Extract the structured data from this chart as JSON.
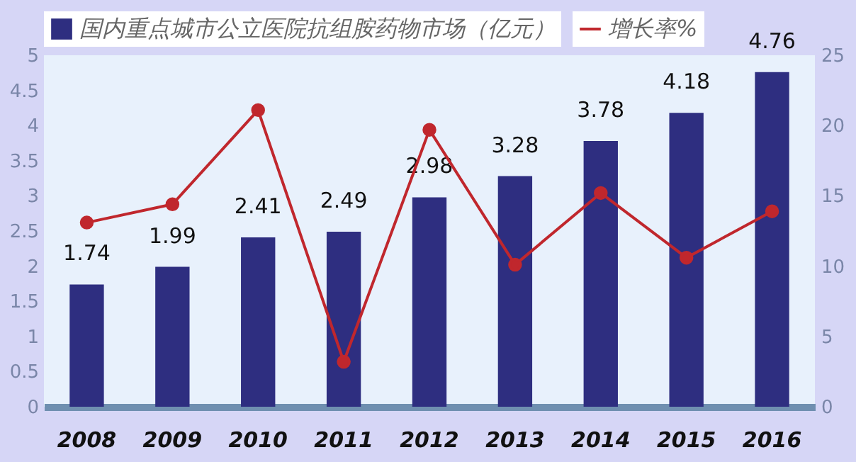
{
  "chart_data": {
    "type": "bar",
    "categories": [
      "2008",
      "2009",
      "2010",
      "2011",
      "2012",
      "2013",
      "2014",
      "2015",
      "2016"
    ],
    "series": [
      {
        "name": "国内重点城市公立医院抗组胺药物市场（亿元）",
        "color": "#2e2e80",
        "values": [
          1.74,
          1.99,
          2.41,
          2.49,
          2.98,
          3.28,
          3.78,
          4.18,
          4.76
        ],
        "value_labels": [
          "1.74",
          "1.99",
          "2.41",
          "2.49",
          "2.98",
          "3.28",
          "3.78",
          "4.18",
          "4.76"
        ]
      },
      {
        "name": "增长率%",
        "type": "line",
        "axis": "y2",
        "color": "#c0272d",
        "values": [
          13.1,
          14.4,
          21.1,
          3.2,
          19.7,
          10.1,
          15.2,
          10.6,
          13.9
        ]
      }
    ],
    "ylim": [
      0,
      5
    ],
    "yticks": [
      0,
      0.5,
      1,
      1.5,
      2,
      2.5,
      3,
      3.5,
      4,
      4.5,
      5
    ],
    "y2lim": [
      0,
      25
    ],
    "y2ticks": [
      0,
      5,
      10,
      15,
      20,
      25
    ],
    "legend": "top",
    "marker": "circle",
    "grid": false
  }
}
